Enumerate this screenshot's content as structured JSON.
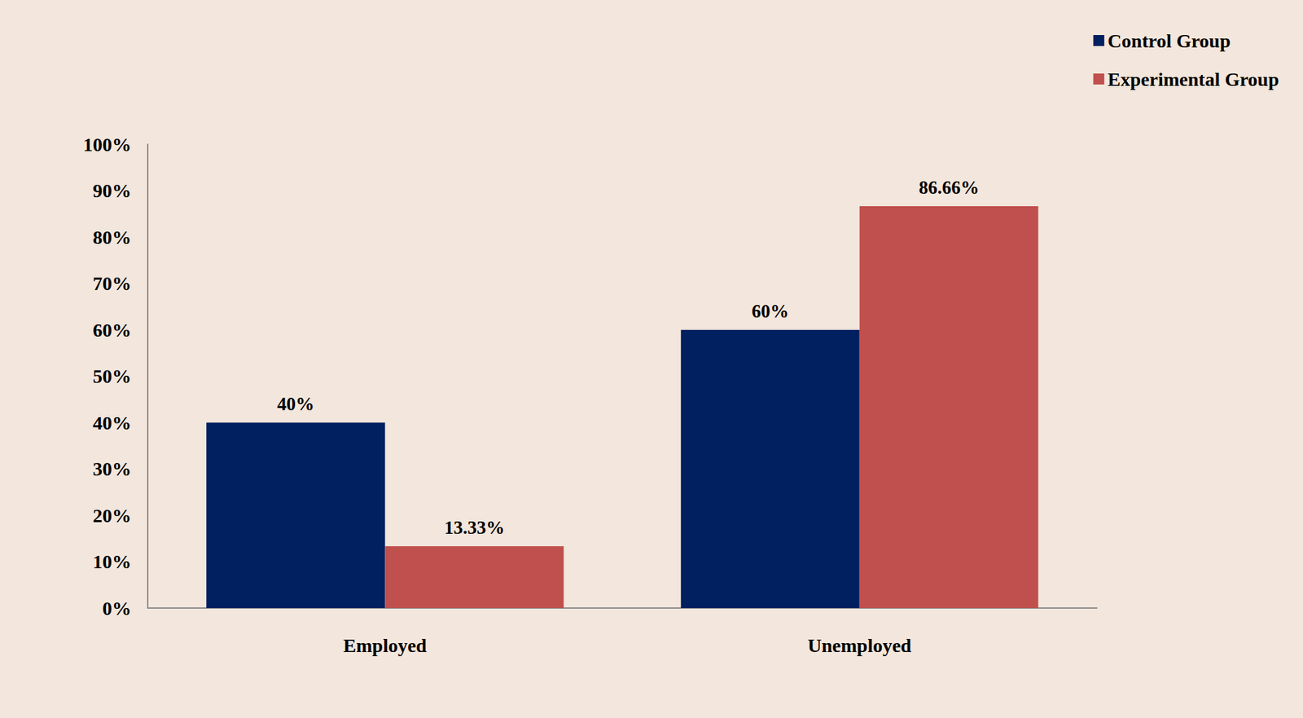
{
  "chart_data": {
    "type": "bar",
    "categories": [
      "Employed",
      "Unemployed"
    ],
    "series": [
      {
        "name": "Control Group",
        "color": "#002060",
        "values": [
          40,
          60
        ],
        "value_labels": [
          "40%",
          "60%"
        ]
      },
      {
        "name": "Experimental Group",
        "color": "#C0504D",
        "values": [
          13.33,
          86.66
        ],
        "value_labels": [
          "13.33%",
          "86.66%"
        ]
      }
    ],
    "ylim": [
      0,
      100
    ],
    "yticks": [
      {
        "value": 0,
        "label": "0%"
      },
      {
        "value": 10,
        "label": "10%"
      },
      {
        "value": 20,
        "label": "20%"
      },
      {
        "value": 30,
        "label": "30%"
      },
      {
        "value": 40,
        "label": "40%"
      },
      {
        "value": 50,
        "label": "50%"
      },
      {
        "value": 60,
        "label": "60%"
      },
      {
        "value": 70,
        "label": "70%"
      },
      {
        "value": 80,
        "label": "80%"
      },
      {
        "value": 90,
        "label": "90%"
      },
      {
        "value": 100,
        "label": "100%"
      }
    ],
    "grid": false,
    "legend": "top-right",
    "data_labels": true
  }
}
